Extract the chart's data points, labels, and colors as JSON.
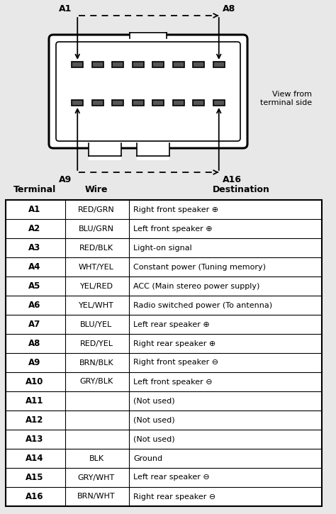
{
  "bg_color": "#e8e8e8",
  "table_header": [
    "Terminal",
    "Wire",
    "Destination"
  ],
  "rows": [
    [
      "A1",
      "RED/GRN",
      "Right front speaker ⊕"
    ],
    [
      "A2",
      "BLU/GRN",
      "Left front speaker ⊕"
    ],
    [
      "A3",
      "RED/BLK",
      "Light-on signal"
    ],
    [
      "A4",
      "WHT/YEL",
      "Constant power (Tuning memory)"
    ],
    [
      "A5",
      "YEL/RED",
      "ACC (Main stereo power supply)"
    ],
    [
      "A6",
      "YEL/WHT",
      "Radio switched power (To antenna)"
    ],
    [
      "A7",
      "BLU/YEL",
      "Left rear speaker ⊕"
    ],
    [
      "A8",
      "RED/YEL",
      "Right rear speaker ⊕"
    ],
    [
      "A9",
      "BRN/BLK",
      "Right front speaker ⊖"
    ],
    [
      "A10",
      "GRY/BLK",
      "Left front speaker ⊖"
    ],
    [
      "A11",
      "",
      "(Not used)"
    ],
    [
      "A12",
      "",
      "(Not used)"
    ],
    [
      "A13",
      "",
      "(Not used)"
    ],
    [
      "A14",
      "BLK",
      "Ground"
    ],
    [
      "A15",
      "GRY/WHT",
      "Left rear speaker ⊖"
    ],
    [
      "A16",
      "BRN/WHT",
      "Right rear speaker ⊖"
    ]
  ],
  "connector_label_A1": "A1",
  "connector_label_A8": "A8",
  "connector_label_A9": "A9",
  "connector_label_A16": "A16",
  "view_text": "View from\nterminal side",
  "fig_width": 4.74,
  "fig_height": 7.25,
  "dpi": 100
}
